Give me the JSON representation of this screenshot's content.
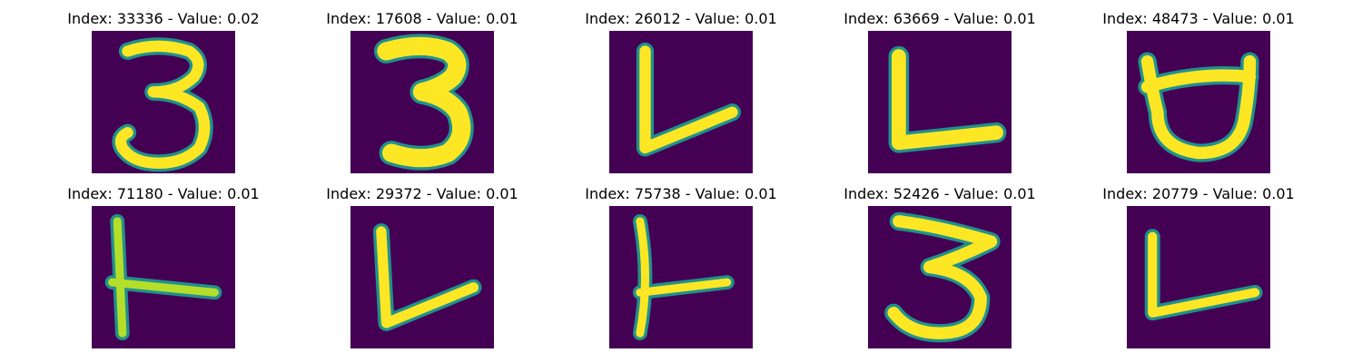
{
  "colors": {
    "background": "#440154",
    "stroke_core": "#fde725",
    "stroke_mid": "#5ec962",
    "stroke_edge": "#21918c"
  },
  "grid": {
    "rows": 2,
    "columns": 5
  },
  "panels": [
    {
      "title": "Index: 33336 - Value: 0.02",
      "glyph": "3",
      "rotation_deg": 0
    },
    {
      "title": "Index: 17608 - Value: 0.01",
      "glyph": "3",
      "rotation_deg": 0
    },
    {
      "title": "Index: 26012 - Value: 0.01",
      "glyph": "L",
      "rotation_deg": 0
    },
    {
      "title": "Index: 63669 - Value: 0.01",
      "glyph": "L",
      "rotation_deg": 0
    },
    {
      "title": "Index: 48473 - Value: 0.01",
      "glyph": "open-loop",
      "rotation_deg": 0
    },
    {
      "title": "Index: 71180 - Value: 0.01",
      "glyph": "T-sideways",
      "rotation_deg": 0
    },
    {
      "title": "Index: 29372 - Value: 0.01",
      "glyph": "L",
      "rotation_deg": 0
    },
    {
      "title": "Index: 75738 - Value: 0.01",
      "glyph": "T-sideways",
      "rotation_deg": 0
    },
    {
      "title": "Index: 52426 - Value: 0.01",
      "glyph": "3",
      "rotation_deg": 0
    },
    {
      "title": "Index: 20779 - Value: 0.01",
      "glyph": "L",
      "rotation_deg": 0
    }
  ]
}
